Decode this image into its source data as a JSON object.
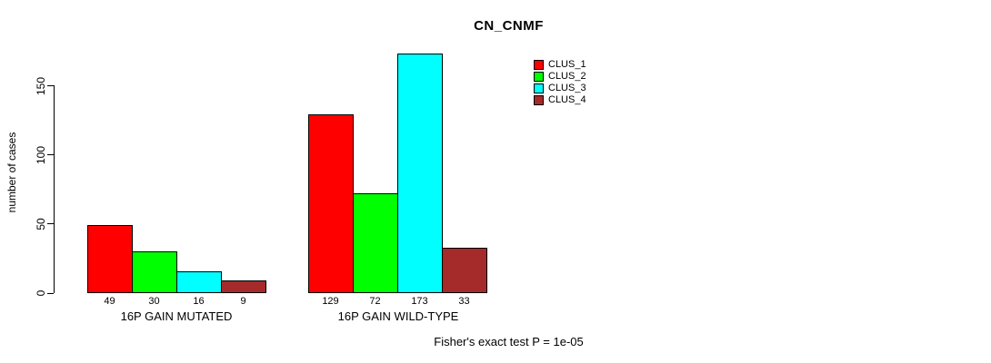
{
  "chart_data": {
    "type": "bar",
    "title": "CN_CNMF",
    "ylabel": "number of cases",
    "xlabel": "",
    "categories": [
      "16P GAIN MUTATED",
      "16P GAIN WILD-TYPE"
    ],
    "series": [
      {
        "name": "CLUS_1",
        "color": "#FF0000",
        "values": [
          49,
          129
        ]
      },
      {
        "name": "CLUS_2",
        "color": "#00FF00",
        "values": [
          30,
          72
        ]
      },
      {
        "name": "CLUS_3",
        "color": "#00FFFF",
        "values": [
          16,
          173
        ]
      },
      {
        "name": "CLUS_4",
        "color": "#A52A2A",
        "values": [
          9,
          33
        ]
      }
    ],
    "yticks": [
      0,
      50,
      100,
      150
    ],
    "ylim": [
      0,
      175
    ],
    "grid": false,
    "legend_position": "top-right",
    "bar_border_color": "#000000",
    "annotation": "Fisher's exact test P = 1e-05"
  }
}
